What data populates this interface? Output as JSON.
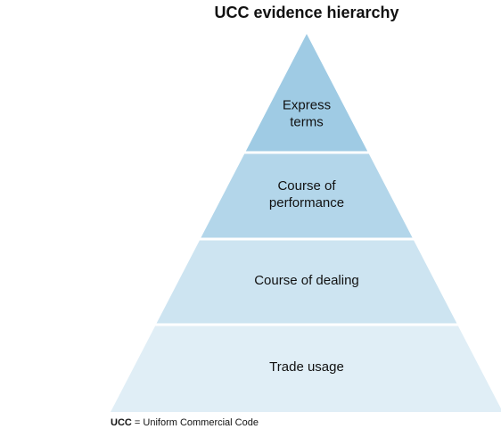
{
  "title": "UCC evidence hierarchy",
  "tiers": [
    {
      "lines": [
        "Express",
        "terms"
      ],
      "color": "#9fcbe4"
    },
    {
      "lines": [
        "Course of",
        "performance"
      ],
      "color": "#b3d6ea"
    },
    {
      "lines": [
        "Course of dealing"
      ],
      "color": "#cde4f1"
    },
    {
      "lines": [
        "Trade usage"
      ],
      "color": "#e0eef6"
    }
  ],
  "footnote": {
    "abbr": "UCC",
    "definition": "= Uniform Commercial Code"
  }
}
